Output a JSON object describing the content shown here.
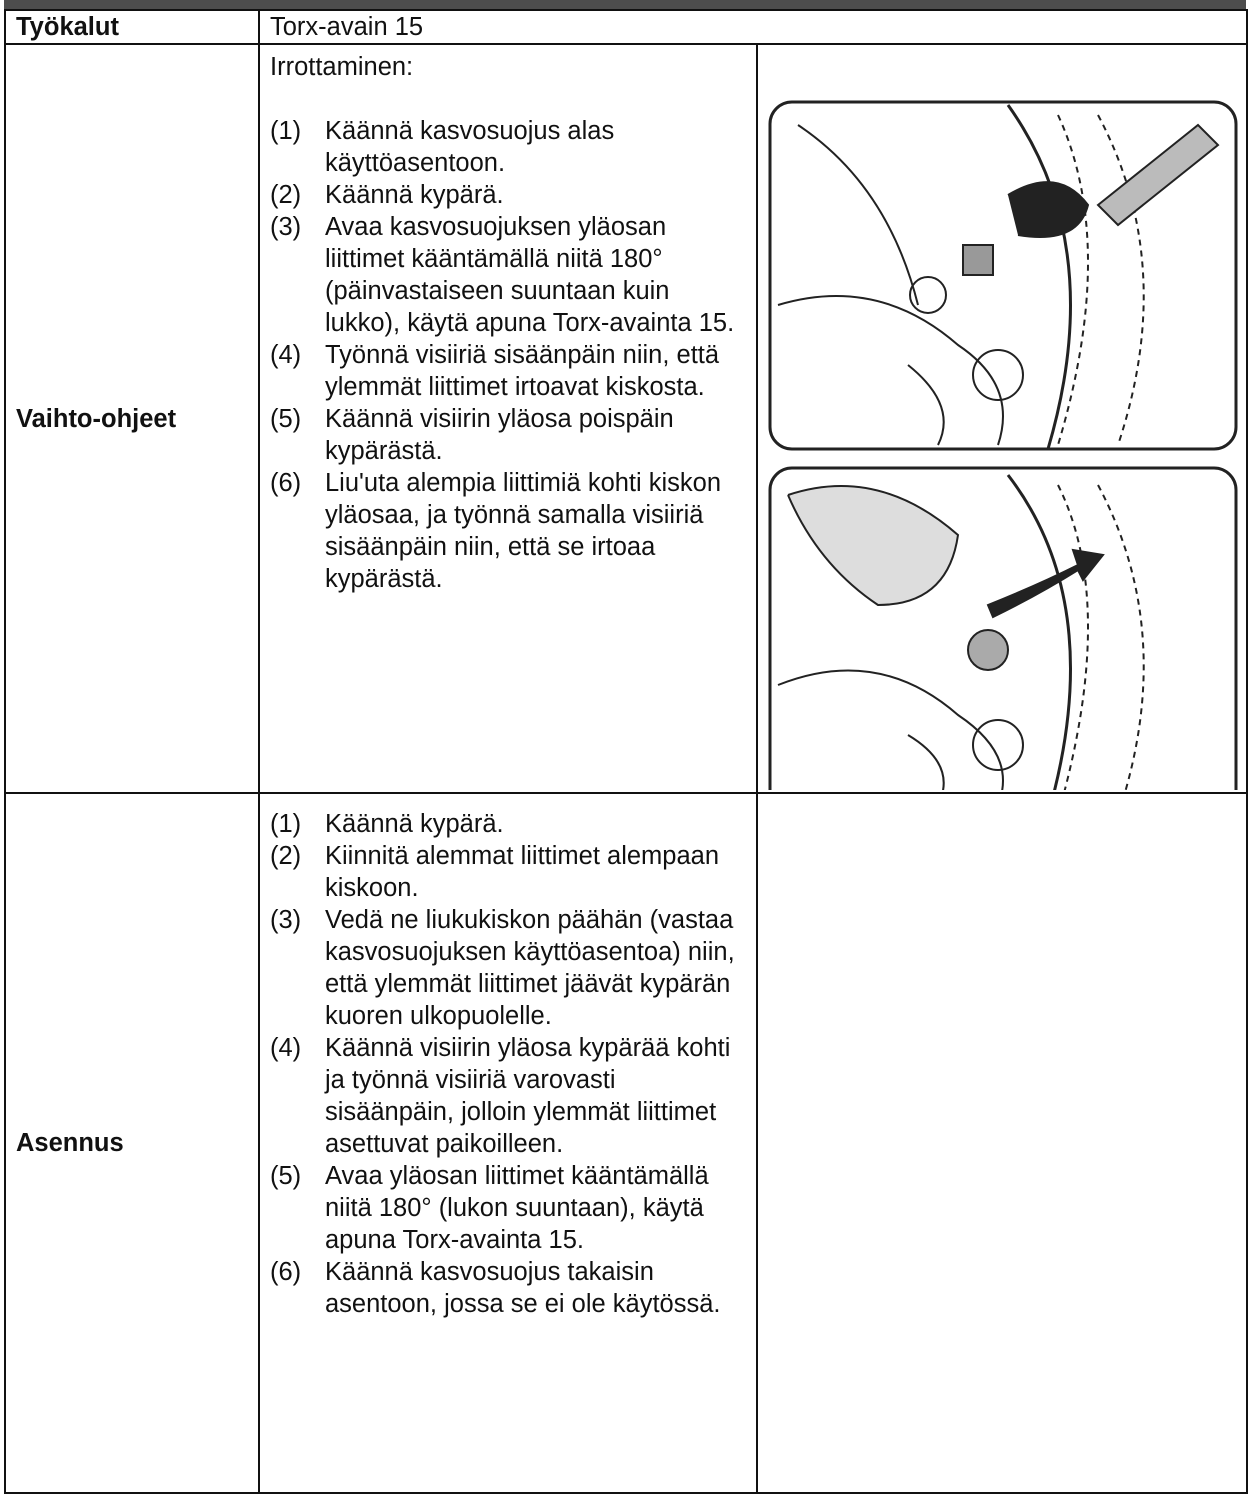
{
  "tools": {
    "label": "Työkalut",
    "value": "Torx-avain 15"
  },
  "replacement": {
    "label": "Vaihto-ohjeet",
    "heading": "Irrottaminen:",
    "steps": [
      {
        "number": "(1)",
        "text": "Käännä kasvosuojus alas käyttöasentoon."
      },
      {
        "number": "(2)",
        "text": "Käännä kypärä."
      },
      {
        "number": "(3)",
        "text": "Avaa kasvosuojuksen yläosan liittimet kääntämällä niitä 180° (päinvastaiseen suuntaan kuin lukko), käytä apuna Torx-avainta 15."
      },
      {
        "number": "(4)",
        "text": "Työnnä visiiriä sisäänpäin niin, että ylemmät liittimet irtoavat kiskosta."
      },
      {
        "number": "(5)",
        "text": "Käännä visiirin yläosa poispäin kypärästä."
      },
      {
        "number": "(6)",
        "text": "Liu'uta alempia liittimiä kohti kiskon yläosaa, ja työnnä samalla visiiriä sisäänpäin niin, että se irtoaa kypärästä."
      }
    ]
  },
  "installation": {
    "label": "Asennus",
    "steps": [
      {
        "number": "(1)",
        "text": "Käännä kypärä."
      },
      {
        "number": "(2)",
        "text": "Kiinnitä alemmat liittimet alempaan kiskoon."
      },
      {
        "number": "(3)",
        "text": "Vedä ne liukukiskon päähän (vastaa kasvosuojuksen käyttöasentoa) niin, että ylemmät liittimet jäävät kypärän kuoren ulkopuolelle."
      },
      {
        "number": "(4)",
        "text": "Käännä visiirin yläosa kypärää kohti ja työnnä visiiriä varovasti sisäänpäin, jolloin ylemmät liittimet asettuvat paikoilleen."
      },
      {
        "number": "(5)",
        "text": "Avaa yläosan liittimet kääntämällä niitä 180° (lukon suuntaan), käytä apuna Torx-avainta 15."
      },
      {
        "number": "(6)",
        "text": "Käännä kasvosuojus takaisin asentoon, jossa se ei ole käytössä."
      }
    ]
  }
}
